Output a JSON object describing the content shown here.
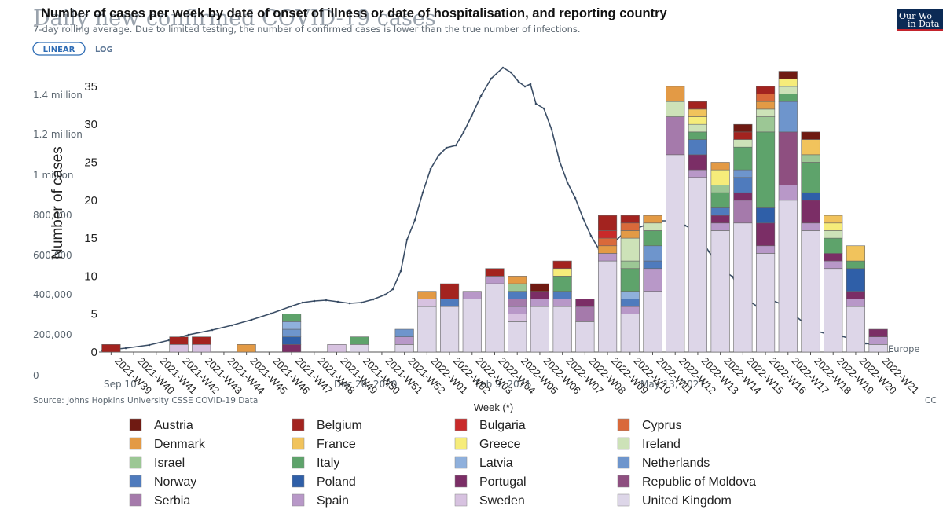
{
  "background_chart": {
    "title": "Daily new confirmed COVID-19 cases",
    "subtitle": "7-day rolling average. Due to limited testing, the number of confirmed cases is lower than the true number of infections.",
    "scale_toggle": {
      "linear": "LINEAR",
      "log": "LOG"
    },
    "logo": [
      "Our Wo",
      "in Data"
    ],
    "y_ticks": [
      "1.4 million",
      "1.2 million",
      "1 million",
      "800,000",
      "600,000",
      "400,000",
      "200,000",
      "0"
    ],
    "x_ticks": [
      "Sep 10",
      "Dec 20, 2020",
      "Feb 9, 2021",
      "May 13, 2021"
    ],
    "series_label": "Europe",
    "source": "Source: Johns Hopkins University CSSE COVID-19 Data",
    "license": "CC",
    "line_color": "#3b4e66"
  },
  "chart_data": {
    "type": "bar",
    "title": "Number of cases per week by date of onset of illness or date of hospitalisation, and reporting country",
    "xlabel": "Week (*)",
    "ylabel": "Number of cases",
    "ylim": [
      0,
      38
    ],
    "yticks": [
      0,
      5,
      10,
      15,
      20,
      25,
      30,
      35
    ],
    "stacked": true,
    "categories": [
      "2021-W39",
      "2021-W40",
      "2021-W41",
      "2021-W42",
      "2021-W43",
      "2021-W44",
      "2021-W45",
      "2021-W46",
      "2021-W47",
      "2021-W48",
      "2021-W49",
      "2021-W50",
      "2021-W51",
      "2021-W52",
      "2022-W01",
      "2022-W02",
      "2022-W03",
      "2022-W04",
      "2022-W05",
      "2022-W06",
      "2022-W07",
      "2022-W08",
      "2022-W09",
      "2022-W10",
      "2022-W11",
      "2022-W12",
      "2022-W13",
      "2022-W14",
      "2022-W15",
      "2022-W16",
      "2022-W17",
      "2022-W18",
      "2022-W19",
      "2022-W20",
      "2022-W21"
    ],
    "series": [
      {
        "name": "United Kingdom",
        "color": "#ddd6e8",
        "values": [
          0,
          0,
          0,
          0,
          0,
          0,
          0,
          0,
          0,
          0,
          0,
          1,
          0,
          1,
          6,
          6,
          7,
          9,
          4,
          6,
          6,
          4,
          12,
          5,
          8,
          26,
          23,
          16,
          17,
          13,
          20,
          16,
          11,
          6,
          1
        ]
      },
      {
        "name": "Sweden",
        "color": "#d7c2e0",
        "values": [
          0,
          0,
          0,
          1,
          1,
          0,
          0,
          0,
          0,
          0,
          1,
          0,
          0,
          0,
          1,
          0,
          0,
          0,
          1,
          0,
          0,
          0,
          0,
          0,
          0,
          0,
          0,
          0,
          0,
          0,
          0,
          0,
          0,
          0,
          0
        ]
      },
      {
        "name": "Spain",
        "color": "#b898c8",
        "values": [
          0,
          0,
          0,
          0,
          0,
          0,
          0,
          0,
          0,
          0,
          0,
          0,
          0,
          1,
          0,
          0,
          1,
          1,
          1,
          1,
          1,
          0,
          1,
          1,
          3,
          0,
          1,
          1,
          0,
          1,
          2,
          1,
          1,
          1,
          1
        ]
      },
      {
        "name": "Serbia",
        "color": "#a57aab",
        "values": [
          0,
          0,
          0,
          0,
          0,
          0,
          0,
          0,
          0,
          0,
          0,
          0,
          0,
          0,
          0,
          0,
          0,
          0,
          1,
          0,
          0,
          2,
          0,
          0,
          0,
          5,
          0,
          0,
          3,
          0,
          0,
          0,
          0,
          0,
          0
        ]
      },
      {
        "name": "Republic of Moldova",
        "color": "#8e4f80",
        "values": [
          0,
          0,
          0,
          0,
          0,
          0,
          0,
          0,
          0,
          0,
          0,
          0,
          0,
          0,
          0,
          0,
          0,
          0,
          0,
          0,
          0,
          0,
          0,
          0,
          0,
          0,
          0,
          0,
          0,
          0,
          7,
          0,
          0,
          0,
          0
        ]
      },
      {
        "name": "Portugal",
        "color": "#7b2e66",
        "values": [
          0,
          0,
          0,
          0,
          0,
          0,
          0,
          0,
          1,
          0,
          0,
          0,
          0,
          0,
          0,
          0,
          0,
          0,
          0,
          1,
          0,
          1,
          0,
          0,
          0,
          0,
          2,
          1,
          1,
          3,
          0,
          3,
          1,
          1,
          1
        ]
      },
      {
        "name": "Poland",
        "color": "#2f5fa8",
        "values": [
          0,
          0,
          0,
          0,
          0,
          0,
          0,
          0,
          1,
          0,
          0,
          0,
          0,
          0,
          0,
          0,
          0,
          0,
          0,
          0,
          0,
          0,
          0,
          0,
          0,
          0,
          0,
          0,
          0,
          2,
          0,
          1,
          0,
          3,
          0
        ]
      },
      {
        "name": "Norway",
        "color": "#4f7bbd",
        "values": [
          0,
          0,
          0,
          0,
          0,
          0,
          0,
          0,
          0,
          0,
          0,
          0,
          0,
          0,
          0,
          1,
          0,
          0,
          1,
          0,
          1,
          0,
          0,
          1,
          1,
          0,
          2,
          1,
          2,
          0,
          0,
          0,
          0,
          0,
          0
        ]
      },
      {
        "name": "Netherlands",
        "color": "#6e95cc",
        "values": [
          0,
          0,
          0,
          0,
          0,
          0,
          0,
          0,
          1,
          0,
          0,
          0,
          0,
          1,
          0,
          0,
          0,
          0,
          0,
          0,
          0,
          0,
          0,
          0,
          2,
          0,
          0,
          0,
          1,
          0,
          4,
          0,
          0,
          0,
          0
        ]
      },
      {
        "name": "Latvia",
        "color": "#8fb0dc",
        "values": [
          0,
          0,
          0,
          0,
          0,
          0,
          0,
          0,
          1,
          0,
          0,
          0,
          0,
          0,
          0,
          0,
          0,
          0,
          0,
          0,
          0,
          0,
          0,
          1,
          0,
          0,
          0,
          0,
          0,
          0,
          0,
          0,
          0,
          0,
          0
        ]
      },
      {
        "name": "Italy",
        "color": "#5ea36b",
        "values": [
          0,
          0,
          0,
          0,
          0,
          0,
          0,
          0,
          1,
          0,
          0,
          1,
          0,
          0,
          0,
          0,
          0,
          0,
          0,
          0,
          2,
          0,
          0,
          3,
          2,
          0,
          1,
          2,
          3,
          10,
          1,
          4,
          2,
          1,
          0
        ]
      },
      {
        "name": "Israel",
        "color": "#9cc795",
        "values": [
          0,
          0,
          0,
          0,
          0,
          0,
          0,
          0,
          0,
          0,
          0,
          0,
          0,
          0,
          0,
          0,
          0,
          0,
          1,
          0,
          0,
          0,
          0,
          1,
          0,
          0,
          0,
          1,
          0,
          2,
          0,
          1,
          0,
          0,
          0
        ]
      },
      {
        "name": "Ireland",
        "color": "#cde2b8",
        "values": [
          0,
          0,
          0,
          0,
          0,
          0,
          0,
          0,
          0,
          0,
          0,
          0,
          0,
          0,
          0,
          0,
          0,
          0,
          0,
          0,
          0,
          0,
          0,
          3,
          1,
          2,
          1,
          0,
          1,
          1,
          1,
          0,
          1,
          0,
          0
        ]
      },
      {
        "name": "Greece",
        "color": "#f6ec7a",
        "values": [
          0,
          0,
          0,
          0,
          0,
          0,
          0,
          0,
          0,
          0,
          0,
          0,
          0,
          0,
          0,
          0,
          0,
          0,
          0,
          0,
          1,
          0,
          0,
          0,
          0,
          0,
          1,
          2,
          0,
          0,
          1,
          0,
          1,
          0,
          0
        ]
      },
      {
        "name": "France",
        "color": "#f1c35c",
        "values": [
          0,
          0,
          0,
          0,
          0,
          0,
          0,
          0,
          0,
          0,
          0,
          0,
          0,
          0,
          0,
          0,
          0,
          0,
          0,
          0,
          0,
          0,
          0,
          0,
          0,
          0,
          1,
          0,
          0,
          0,
          0,
          2,
          1,
          2,
          0
        ]
      },
      {
        "name": "Denmark",
        "color": "#e39a45",
        "values": [
          0,
          0,
          0,
          0,
          0,
          0,
          1,
          0,
          0,
          0,
          0,
          0,
          0,
          0,
          1,
          0,
          0,
          0,
          1,
          0,
          0,
          0,
          1,
          1,
          1,
          2,
          0,
          1,
          0,
          1,
          0,
          0,
          0,
          0,
          0
        ]
      },
      {
        "name": "Cyprus",
        "color": "#d9693a",
        "values": [
          0,
          0,
          0,
          0,
          0,
          0,
          0,
          0,
          0,
          0,
          0,
          0,
          0,
          0,
          0,
          0,
          0,
          0,
          0,
          0,
          0,
          0,
          1,
          1,
          0,
          0,
          0,
          0,
          0,
          1,
          0,
          0,
          0,
          0,
          0
        ]
      },
      {
        "name": "Bulgaria",
        "color": "#c92a2a",
        "values": [
          0,
          0,
          0,
          0,
          0,
          0,
          0,
          0,
          0,
          0,
          0,
          0,
          0,
          0,
          0,
          0,
          0,
          0,
          0,
          0,
          0,
          0,
          1,
          0,
          0,
          0,
          0,
          0,
          0,
          0,
          0,
          0,
          0,
          0,
          0
        ]
      },
      {
        "name": "Belgium",
        "color": "#a3231f",
        "values": [
          1,
          0,
          0,
          1,
          1,
          0,
          0,
          0,
          0,
          0,
          0,
          0,
          0,
          0,
          0,
          2,
          0,
          1,
          0,
          0,
          1,
          0,
          2,
          1,
          0,
          0,
          1,
          0,
          1,
          1,
          0,
          0,
          0,
          0,
          0
        ]
      },
      {
        "name": "Austria",
        "color": "#6f1a12",
        "values": [
          0,
          0,
          0,
          0,
          0,
          0,
          0,
          0,
          0,
          0,
          0,
          0,
          0,
          0,
          0,
          0,
          0,
          0,
          0,
          1,
          0,
          0,
          0,
          0,
          0,
          0,
          0,
          0,
          1,
          0,
          1,
          1,
          0,
          0,
          0
        ]
      }
    ],
    "legend": [
      [
        "Austria",
        "Belgium",
        "Bulgaria",
        "Cyprus"
      ],
      [
        "Denmark",
        "France",
        "Greece",
        "Ireland"
      ],
      [
        "Israel",
        "Italy",
        "Latvia",
        "Netherlands"
      ],
      [
        "Norway",
        "Poland",
        "Portugal",
        "Republic of Moldova"
      ],
      [
        "Serbia",
        "Spain",
        "Sweden",
        "United Kingdom"
      ]
    ],
    "legend_placement": "bottom",
    "grid": false
  }
}
